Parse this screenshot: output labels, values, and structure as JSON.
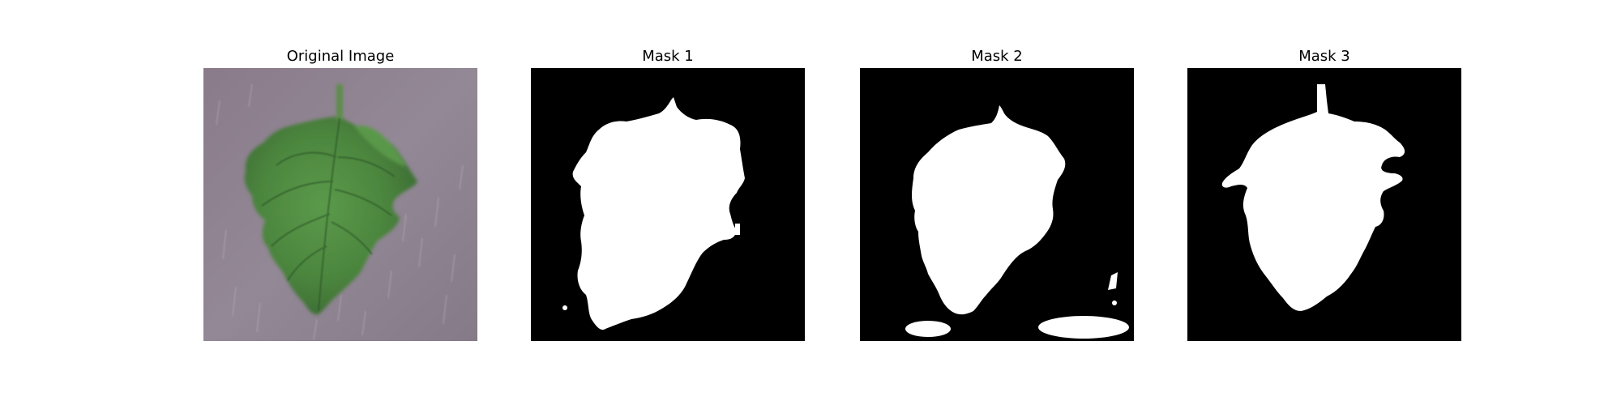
{
  "figure": {
    "panels": [
      {
        "title": "Original Image",
        "content": "leaf-photo"
      },
      {
        "title": "Mask 1",
        "content": "binary-mask"
      },
      {
        "title": "Mask 2",
        "content": "binary-mask"
      },
      {
        "title": "Mask 3",
        "content": "binary-mask"
      }
    ]
  },
  "colors": {
    "mask_background": "#000000",
    "mask_foreground": "#ffffff",
    "photo_background": "#8e8290",
    "leaf_green": "#4d8a3f",
    "leaf_dark": "#2f5f2a"
  }
}
